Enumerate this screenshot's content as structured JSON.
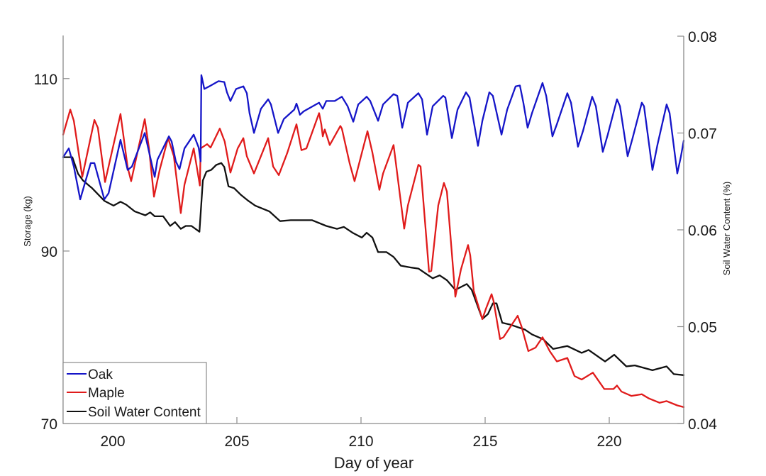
{
  "chart_data": {
    "type": "line",
    "title": "",
    "xlabel": "Day of year",
    "ylabel": "Storage (kg)",
    "y2label": "Soil Water Content (%)",
    "xlim": [
      198,
      223
    ],
    "ylim": [
      70,
      115
    ],
    "y2lim": [
      0.04,
      0.08
    ],
    "xticks": [
      200,
      205,
      210,
      215,
      220
    ],
    "xtick_labels": [
      "200",
      "205",
      "210",
      "215",
      "220"
    ],
    "yticks": [
      70,
      90,
      110
    ],
    "ytick_labels": [
      "70",
      "90",
      "110"
    ],
    "y2ticks": [
      0.04,
      0.05,
      0.06,
      0.07,
      0.08
    ],
    "y2tick_labels": [
      "0.04",
      "0.05",
      "0.06",
      "0.07",
      "0.08"
    ],
    "grid": false,
    "legend_position": "bottom-left",
    "series": [
      {
        "name": "Oak",
        "color": "#1515c8",
        "axis": "left",
        "x": [
          198.0,
          198.23,
          198.43,
          198.69,
          199.11,
          199.26,
          199.66,
          199.83,
          200.31,
          200.6,
          200.77,
          201.29,
          201.69,
          201.8,
          202.26,
          202.37,
          202.54,
          202.69,
          202.89,
          203.26,
          203.46,
          203.54,
          203.57,
          203.69,
          203.89,
          204.26,
          204.49,
          204.6,
          204.74,
          204.97,
          205.26,
          205.4,
          205.51,
          205.69,
          205.97,
          206.26,
          206.37,
          206.66,
          206.89,
          207.31,
          207.4,
          207.46,
          207.54,
          207.69,
          208.31,
          208.46,
          208.6,
          208.94,
          209.23,
          209.46,
          209.69,
          209.89,
          210.23,
          210.37,
          210.69,
          210.89,
          211.31,
          211.46,
          211.66,
          211.89,
          212.31,
          212.46,
          212.66,
          212.89,
          213.31,
          213.4,
          213.66,
          213.89,
          214.23,
          214.37,
          214.71,
          214.89,
          215.17,
          215.31,
          215.66,
          215.89,
          216.23,
          216.4,
          216.54,
          216.71,
          216.89,
          217.31,
          217.46,
          217.71,
          217.89,
          218.31,
          218.46,
          218.74,
          218.94,
          219.31,
          219.46,
          219.74,
          219.94,
          220.31,
          220.43,
          220.74,
          220.94,
          221.31,
          221.4,
          221.74,
          221.94,
          222.31,
          222.43,
          222.74,
          222.89,
          223.0
        ],
        "y": [
          100.9,
          101.9,
          99.8,
          96.0,
          100.2,
          100.2,
          96.0,
          96.7,
          102.9,
          99.4,
          99.8,
          103.7,
          98.6,
          100.6,
          103.3,
          102.7,
          100.4,
          99.5,
          101.9,
          103.5,
          102.0,
          100.4,
          110.4,
          108.8,
          109.1,
          109.7,
          109.6,
          108.4,
          107.4,
          108.8,
          109.1,
          108.3,
          106.0,
          103.7,
          106.5,
          107.6,
          107.0,
          103.7,
          105.3,
          106.4,
          107.1,
          106.6,
          105.8,
          106.2,
          107.2,
          106.5,
          107.4,
          107.4,
          107.9,
          106.8,
          105.0,
          107.0,
          107.9,
          107.4,
          105.1,
          107.0,
          108.2,
          108.0,
          104.3,
          107.2,
          108.3,
          107.6,
          103.5,
          106.8,
          108.0,
          107.8,
          103.1,
          106.4,
          108.4,
          107.8,
          102.2,
          105.1,
          108.4,
          108.0,
          103.5,
          106.4,
          109.1,
          109.2,
          107.2,
          104.3,
          106.0,
          109.5,
          108.0,
          103.3,
          104.7,
          108.3,
          107.2,
          102.1,
          103.9,
          107.9,
          106.8,
          101.5,
          103.5,
          107.6,
          106.8,
          101.0,
          103.1,
          107.2,
          106.8,
          99.4,
          102.3,
          107.0,
          106.0,
          99.0,
          101.0,
          102.8
        ]
      },
      {
        "name": "Maple",
        "color": "#e01b1b",
        "axis": "left",
        "x": [
          198.0,
          198.29,
          198.43,
          198.77,
          199.26,
          199.4,
          199.69,
          200.31,
          200.6,
          200.74,
          201.29,
          201.46,
          201.66,
          201.89,
          202.23,
          202.46,
          202.74,
          202.89,
          203.26,
          203.51,
          203.54,
          203.8,
          203.94,
          204.31,
          204.51,
          204.74,
          205.03,
          205.26,
          205.4,
          205.69,
          206.26,
          206.46,
          206.69,
          207.03,
          207.4,
          207.6,
          207.8,
          208.31,
          208.4,
          208.46,
          208.54,
          208.74,
          209.17,
          209.23,
          209.54,
          209.74,
          210.26,
          210.46,
          210.74,
          210.89,
          211.31,
          211.74,
          211.89,
          212.31,
          212.4,
          212.74,
          212.83,
          213.11,
          213.34,
          213.46,
          213.8,
          214.03,
          214.31,
          214.4,
          214.54,
          214.89,
          215.03,
          215.26,
          215.34,
          215.6,
          215.74,
          216.31,
          216.46,
          216.74,
          217.03,
          217.31,
          217.6,
          217.89,
          218.31,
          218.6,
          218.89,
          219.34,
          219.8,
          220.17,
          220.31,
          220.49,
          220.89,
          221.31,
          221.6,
          222.03,
          222.31,
          222.74,
          223.0
        ],
        "y": [
          103.5,
          106.4,
          105.1,
          98.6,
          105.2,
          104.3,
          98.0,
          105.9,
          99.7,
          98.1,
          105.3,
          101.9,
          96.3,
          99.4,
          103.1,
          101.0,
          94.4,
          97.7,
          101.9,
          97.6,
          101.9,
          102.4,
          102.0,
          104.2,
          102.7,
          99.1,
          101.9,
          103.1,
          101.0,
          99.0,
          103.1,
          99.8,
          98.8,
          101.4,
          104.7,
          101.7,
          101.9,
          106.0,
          104.7,
          103.3,
          104.1,
          102.3,
          104.5,
          104.2,
          100.2,
          98.1,
          103.9,
          101.4,
          97.1,
          99.0,
          102.3,
          92.6,
          95.3,
          100.0,
          99.8,
          87.6,
          87.7,
          95.3,
          97.9,
          96.9,
          84.7,
          87.9,
          90.7,
          89.5,
          85.4,
          82.1,
          83.3,
          85.0,
          84.2,
          79.8,
          80.0,
          82.5,
          81.3,
          78.4,
          78.8,
          80.0,
          78.4,
          77.2,
          77.6,
          75.5,
          75.1,
          75.9,
          74.0,
          74.0,
          74.4,
          73.7,
          73.2,
          73.4,
          72.9,
          72.4,
          72.6,
          72.1,
          71.9
        ]
      },
      {
        "name": "Soil Water Content",
        "color": "#111111",
        "axis": "right",
        "x": [
          198.0,
          198.37,
          198.6,
          198.8,
          199.17,
          199.66,
          200.03,
          200.31,
          200.54,
          200.89,
          201.31,
          201.51,
          201.69,
          202.03,
          202.31,
          202.51,
          202.74,
          202.94,
          203.17,
          203.49,
          203.63,
          203.77,
          203.97,
          204.17,
          204.37,
          204.49,
          204.66,
          204.89,
          205.17,
          205.46,
          205.74,
          206.31,
          206.74,
          207.17,
          208.03,
          208.6,
          209.03,
          209.31,
          209.66,
          210.03,
          210.23,
          210.46,
          210.69,
          211.03,
          211.31,
          211.6,
          212.03,
          212.31,
          212.6,
          212.89,
          213.17,
          213.46,
          213.8,
          214.03,
          214.26,
          214.46,
          214.66,
          214.89,
          215.11,
          215.31,
          215.46,
          215.69,
          216.03,
          216.6,
          216.89,
          217.34,
          217.74,
          218.31,
          218.89,
          219.17,
          219.83,
          220.2,
          220.69,
          221.03,
          221.74,
          222.31,
          222.6,
          223.0
        ],
        "y": [
          0.0675,
          0.0675,
          0.0658,
          0.0651,
          0.0643,
          0.063,
          0.0625,
          0.0629,
          0.0626,
          0.0619,
          0.0615,
          0.0618,
          0.0614,
          0.0614,
          0.0604,
          0.0608,
          0.0601,
          0.0604,
          0.0604,
          0.0598,
          0.0651,
          0.066,
          0.0662,
          0.0667,
          0.0669,
          0.0665,
          0.0645,
          0.0643,
          0.0636,
          0.063,
          0.0625,
          0.0619,
          0.0609,
          0.061,
          0.061,
          0.0604,
          0.0601,
          0.0603,
          0.0597,
          0.0592,
          0.0597,
          0.0592,
          0.0577,
          0.0577,
          0.0572,
          0.0563,
          0.0561,
          0.056,
          0.0555,
          0.055,
          0.0553,
          0.0548,
          0.0538,
          0.0541,
          0.0544,
          0.0538,
          0.0524,
          0.0508,
          0.0513,
          0.0524,
          0.0524,
          0.0504,
          0.0502,
          0.0497,
          0.0492,
          0.0487,
          0.0477,
          0.048,
          0.0473,
          0.0476,
          0.0464,
          0.0471,
          0.0459,
          0.046,
          0.0455,
          0.0459,
          0.0451,
          0.045
        ]
      }
    ]
  }
}
